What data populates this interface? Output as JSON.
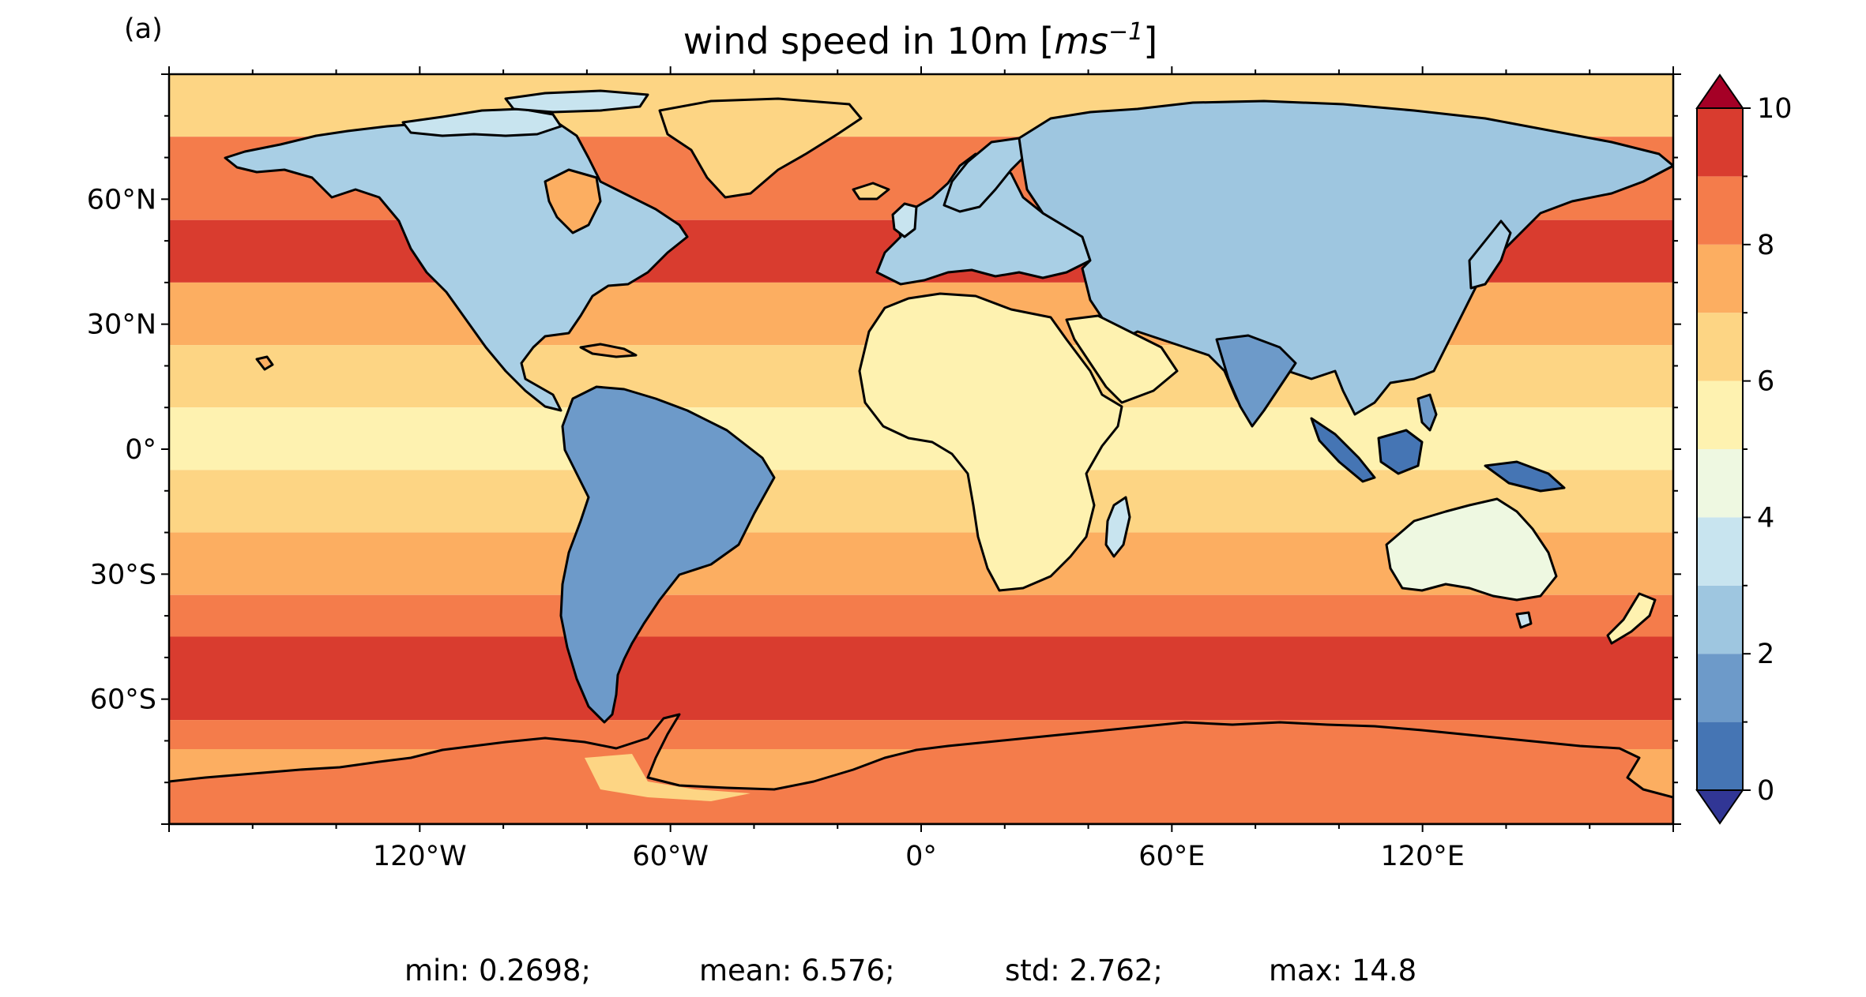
{
  "panel_label": "(a)",
  "title": {
    "prefix": "wind speed in 10m [",
    "unit_base": "ms",
    "unit_exp": "−1",
    "suffix": "]"
  },
  "axes": {
    "x_ticks": [
      {
        "value": -120,
        "label": "120°W"
      },
      {
        "value": -60,
        "label": "60°W"
      },
      {
        "value": 0,
        "label": "0°"
      },
      {
        "value": 60,
        "label": "60°E"
      },
      {
        "value": 120,
        "label": "120°E"
      }
    ],
    "y_ticks": [
      {
        "value": 60,
        "label": "60°N"
      },
      {
        "value": 30,
        "label": "30°N"
      },
      {
        "value": 0,
        "label": "0°"
      },
      {
        "value": -30,
        "label": "30°S"
      },
      {
        "value": -60,
        "label": "60°S"
      }
    ],
    "lon_range": [
      -180,
      180
    ],
    "lat_range": [
      -90,
      90
    ]
  },
  "colorbar": {
    "range": [
      0,
      10
    ],
    "extend": "both",
    "tick_labels": [
      "0",
      "2",
      "4",
      "6",
      "8",
      "10"
    ],
    "levels": [
      0,
      1,
      2,
      3,
      4,
      5,
      6,
      7,
      8,
      9,
      10
    ],
    "colors": [
      "#4575b4",
      "#6d9ac9",
      "#9ec6e0",
      "#c8e4ef",
      "#eef8e1",
      "#fef2b0",
      "#fdd584",
      "#fcae61",
      "#f47c4b",
      "#d93c2f"
    ],
    "under_color": "#313695",
    "over_color": "#a50026"
  },
  "stats": {
    "min": "min: 0.2698;",
    "mean": "mean: 6.576;",
    "std": "std: 2.762;",
    "max": "max: 14.8"
  }
}
